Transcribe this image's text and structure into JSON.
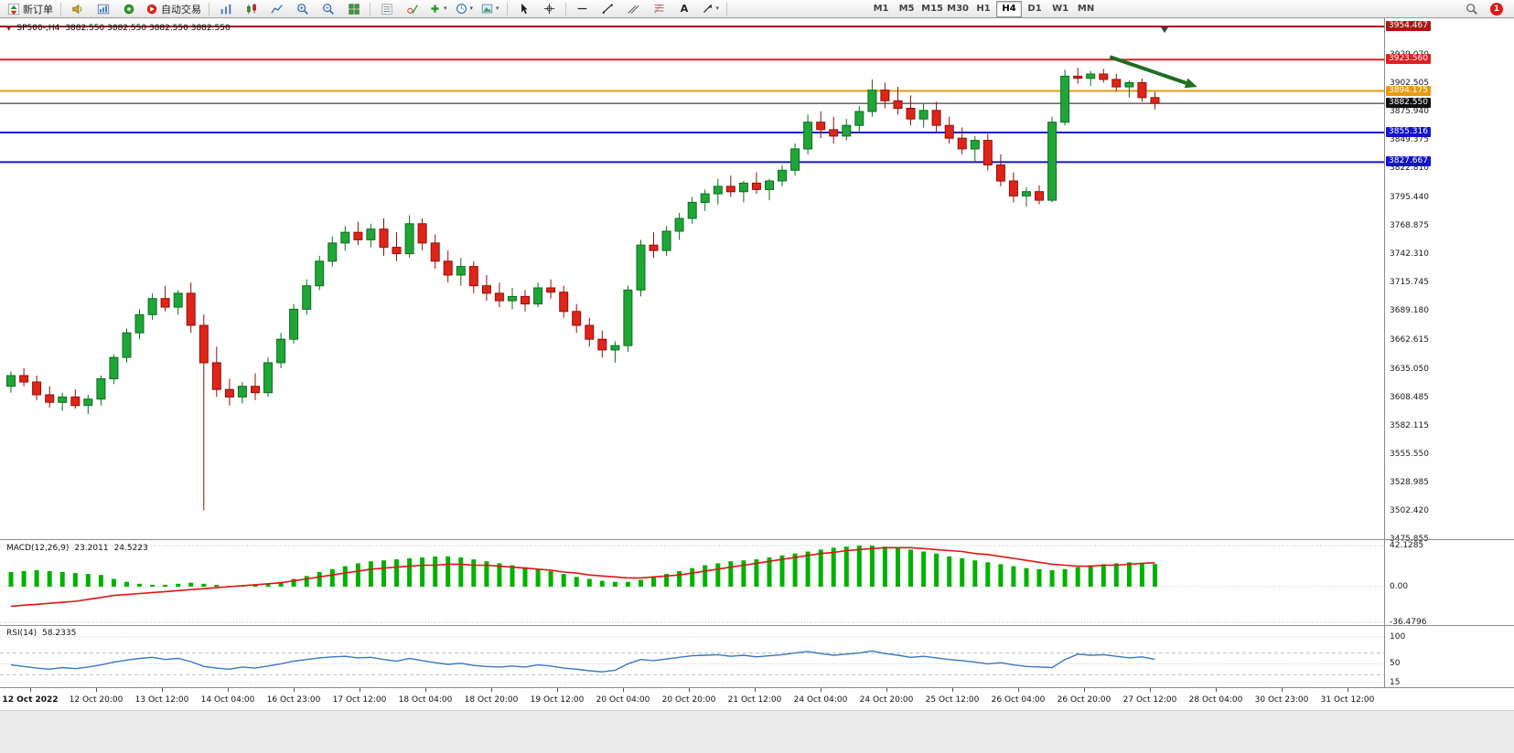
{
  "toolbar": {
    "new_order_label": "新订单",
    "auto_trading_label": "自动交易",
    "text_tool_label": "A",
    "timeframes": [
      "M1",
      "M5",
      "M15",
      "M30",
      "H1",
      "H4",
      "D1",
      "W1",
      "MN"
    ],
    "active_timeframe": "H4",
    "notification_count": "1"
  },
  "chart": {
    "title": "SP500-,H4",
    "quotes": "3882.550 3882.550 3882.550 3882.550"
  },
  "price_scale": {
    "regular_labels": [
      "3929.070",
      "3902.505",
      "3875.940",
      "3849.375",
      "3822.810",
      "3795.440",
      "3768.875",
      "3742.310",
      "3715.745",
      "3689.180",
      "3662.615",
      "3635.050",
      "3608.485",
      "3582.115",
      "3555.550",
      "3528.985",
      "3502.420",
      "3475.855"
    ],
    "badges": [
      {
        "value": "3954.467",
        "color": "#b01515"
      },
      {
        "value": "3923.560",
        "color": "#e02020"
      },
      {
        "value": "3894.175",
        "color": "#e89b10"
      },
      {
        "value": "3882.550",
        "color": "#101010"
      },
      {
        "value": "3855.316",
        "color": "#1414cc"
      },
      {
        "value": "3827.667",
        "color": "#1414cc"
      }
    ]
  },
  "hlines": [
    {
      "price": 3954.467,
      "color": "#a01616",
      "width": 2
    },
    {
      "price": 3923.56,
      "color": "#e02020",
      "width": 2
    },
    {
      "price": 3894.175,
      "color": "#e89b10",
      "width": 2
    },
    {
      "price": 3882.55,
      "color": "#141414",
      "width": 1
    },
    {
      "price": 3855.316,
      "color": "#1414cc",
      "width": 2
    },
    {
      "price": 3827.667,
      "color": "#1414cc",
      "width": 2
    }
  ],
  "macd": {
    "name": "MACD(12,26,9)",
    "value_main": "23.2011",
    "value_signal": "24.5223",
    "scale_top": "42.1285",
    "scale_mid": "0.00",
    "scale_bottom": "-36.4796"
  },
  "rsi": {
    "name": "RSI(14)",
    "value": "58.2335",
    "scale_top": "100",
    "scale_mid": "50",
    "scale_bottom": "15"
  },
  "time_axis": {
    "labels": [
      "12 Oct 2022",
      "12 Oct 20:00",
      "13 Oct 12:00",
      "14 Oct 04:00",
      "16 Oct 23:00",
      "17 Oct 12:00",
      "18 Oct 04:00",
      "18 Oct 20:00",
      "19 Oct 12:00",
      "20 Oct 04:00",
      "20 Oct 20:00",
      "21 Oct 12:00",
      "24 Oct 04:00",
      "24 Oct 20:00",
      "25 Oct 12:00",
      "26 Oct 04:00",
      "26 Oct 20:00",
      "27 Oct 12:00",
      "28 Oct 04:00",
      "30 Oct 23:00",
      "31 Oct 12:00"
    ]
  },
  "chart_data": {
    "type": "candlestick",
    "symbol": "SP500-",
    "period": "H4",
    "title": "SP500-,H4 3882.550 3882.550 3882.550 3882.550",
    "price_axis_range": [
      3475.855,
      3954.467
    ],
    "macd_axis_range": [
      -36.4796,
      42.1285
    ],
    "rsi_axis_range": [
      15,
      100
    ],
    "up_color": "#1fa637",
    "down_color": "#e02418",
    "candles": [
      [
        3618,
        3632,
        3612,
        3628
      ],
      [
        3628,
        3635,
        3618,
        3622
      ],
      [
        3622,
        3628,
        3605,
        3610
      ],
      [
        3610,
        3618,
        3598,
        3603
      ],
      [
        3603,
        3612,
        3595,
        3608
      ],
      [
        3608,
        3615,
        3597,
        3600
      ],
      [
        3600,
        3610,
        3592,
        3606
      ],
      [
        3606,
        3628,
        3600,
        3625
      ],
      [
        3625,
        3648,
        3620,
        3645
      ],
      [
        3645,
        3672,
        3640,
        3668
      ],
      [
        3668,
        3690,
        3662,
        3685
      ],
      [
        3685,
        3705,
        3680,
        3700
      ],
      [
        3700,
        3712,
        3688,
        3692
      ],
      [
        3692,
        3708,
        3685,
        3705
      ],
      [
        3705,
        3715,
        3668,
        3675
      ],
      [
        3675,
        3685,
        3502,
        3640
      ],
      [
        3640,
        3655,
        3608,
        3615
      ],
      [
        3615,
        3625,
        3600,
        3608
      ],
      [
        3608,
        3622,
        3602,
        3618
      ],
      [
        3618,
        3630,
        3605,
        3612
      ],
      [
        3612,
        3645,
        3608,
        3640
      ],
      [
        3640,
        3668,
        3635,
        3662
      ],
      [
        3662,
        3695,
        3658,
        3690
      ],
      [
        3690,
        3718,
        3685,
        3712
      ],
      [
        3712,
        3740,
        3708,
        3735
      ],
      [
        3735,
        3758,
        3730,
        3752
      ],
      [
        3752,
        3768,
        3745,
        3762
      ],
      [
        3762,
        3772,
        3750,
        3755
      ],
      [
        3755,
        3770,
        3748,
        3765
      ],
      [
        3765,
        3775,
        3740,
        3748
      ],
      [
        3748,
        3762,
        3735,
        3742
      ],
      [
        3742,
        3778,
        3738,
        3770
      ],
      [
        3770,
        3775,
        3745,
        3752
      ],
      [
        3752,
        3760,
        3728,
        3735
      ],
      [
        3735,
        3745,
        3715,
        3722
      ],
      [
        3722,
        3738,
        3712,
        3730
      ],
      [
        3730,
        3735,
        3705,
        3712
      ],
      [
        3712,
        3722,
        3698,
        3705
      ],
      [
        3705,
        3715,
        3692,
        3698
      ],
      [
        3698,
        3710,
        3690,
        3702
      ],
      [
        3702,
        3708,
        3688,
        3695
      ],
      [
        3695,
        3715,
        3692,
        3710
      ],
      [
        3710,
        3718,
        3700,
        3706
      ],
      [
        3706,
        3712,
        3682,
        3688
      ],
      [
        3688,
        3695,
        3668,
        3675
      ],
      [
        3675,
        3682,
        3655,
        3662
      ],
      [
        3662,
        3670,
        3645,
        3652
      ],
      [
        3652,
        3660,
        3640,
        3656
      ],
      [
        3656,
        3712,
        3650,
        3708
      ],
      [
        3708,
        3755,
        3702,
        3750
      ],
      [
        3750,
        3762,
        3738,
        3745
      ],
      [
        3745,
        3768,
        3740,
        3763
      ],
      [
        3763,
        3780,
        3755,
        3775
      ],
      [
        3775,
        3795,
        3770,
        3790
      ],
      [
        3790,
        3802,
        3782,
        3798
      ],
      [
        3798,
        3812,
        3788,
        3805
      ],
      [
        3805,
        3815,
        3795,
        3800
      ],
      [
        3800,
        3810,
        3790,
        3808
      ],
      [
        3808,
        3818,
        3798,
        3802
      ],
      [
        3802,
        3812,
        3792,
        3810
      ],
      [
        3810,
        3825,
        3805,
        3820
      ],
      [
        3820,
        3845,
        3815,
        3840
      ],
      [
        3840,
        3872,
        3835,
        3865
      ],
      [
        3865,
        3875,
        3850,
        3858
      ],
      [
        3858,
        3870,
        3845,
        3852
      ],
      [
        3852,
        3868,
        3848,
        3862
      ],
      [
        3862,
        3880,
        3855,
        3875
      ],
      [
        3875,
        3905,
        3870,
        3895
      ],
      [
        3895,
        3902,
        3878,
        3885
      ],
      [
        3885,
        3898,
        3872,
        3878
      ],
      [
        3878,
        3890,
        3862,
        3868
      ],
      [
        3868,
        3882,
        3860,
        3876
      ],
      [
        3876,
        3884,
        3856,
        3862
      ],
      [
        3862,
        3870,
        3845,
        3850
      ],
      [
        3850,
        3860,
        3835,
        3840
      ],
      [
        3840,
        3852,
        3828,
        3848
      ],
      [
        3848,
        3854,
        3820,
        3825
      ],
      [
        3825,
        3835,
        3805,
        3810
      ],
      [
        3810,
        3818,
        3790,
        3796
      ],
      [
        3796,
        3804,
        3786,
        3800
      ],
      [
        3800,
        3806,
        3788,
        3792
      ],
      [
        3792,
        3870,
        3790,
        3865
      ],
      [
        3865,
        3914,
        3862,
        3908
      ],
      [
        3908,
        3916,
        3901,
        3906
      ],
      [
        3906,
        3913,
        3899,
        3910
      ],
      [
        3910,
        3915,
        3902,
        3905
      ],
      [
        3905,
        3910,
        3894,
        3898
      ],
      [
        3898,
        3904,
        3888,
        3902
      ],
      [
        3902,
        3906,
        3884,
        3888
      ],
      [
        3888,
        3893,
        3877,
        3882.55
      ]
    ],
    "macd_histogram": [
      15,
      16,
      17,
      16,
      15,
      14,
      13,
      12,
      8,
      5,
      3,
      2,
      2,
      3,
      4,
      3,
      2,
      1,
      1,
      2,
      3,
      5,
      8,
      11,
      15,
      18,
      21,
      24,
      26,
      27,
      28,
      29,
      30,
      31,
      31,
      30,
      28,
      26,
      24,
      22,
      20,
      18,
      16,
      13,
      10,
      8,
      6,
      5,
      5,
      7,
      10,
      13,
      16,
      19,
      22,
      24,
      26,
      27,
      28,
      30,
      32,
      34,
      36,
      38,
      40,
      41,
      42,
      42,
      41,
      40,
      38,
      36,
      34,
      31,
      29,
      27,
      25,
      23,
      21,
      19,
      18,
      17,
      18,
      20,
      22,
      23,
      24,
      25,
      24,
      23.2011
    ],
    "macd_signal": [
      -20,
      -19,
      -18,
      -17,
      -16,
      -15,
      -13,
      -11,
      -9,
      -8,
      -7,
      -6,
      -5,
      -4,
      -3,
      -2,
      -1,
      0,
      1,
      2,
      3,
      4,
      6,
      8,
      10,
      12,
      14,
      16,
      18,
      19,
      20,
      21,
      22,
      22,
      23,
      23,
      22,
      22,
      21,
      20,
      19,
      18,
      17,
      15,
      14,
      12,
      11,
      10,
      9,
      9,
      10,
      11,
      12,
      14,
      16,
      18,
      20,
      22,
      24,
      26,
      28,
      30,
      32,
      34,
      35,
      37,
      38,
      39,
      40,
      40,
      40,
      39,
      38,
      37,
      36,
      34,
      33,
      31,
      29,
      27,
      25,
      23,
      22,
      21,
      21,
      22,
      22,
      23,
      24,
      24.5223
    ],
    "rsi": [
      48,
      45,
      42,
      40,
      43,
      41,
      44,
      48,
      53,
      57,
      60,
      62,
      58,
      60,
      54,
      45,
      42,
      40,
      44,
      42,
      46,
      50,
      55,
      58,
      61,
      63,
      64,
      61,
      62,
      58,
      55,
      60,
      56,
      52,
      49,
      51,
      47,
      45,
      44,
      46,
      44,
      48,
      46,
      42,
      40,
      37,
      35,
      38,
      50,
      58,
      56,
      59,
      62,
      65,
      66,
      67,
      64,
      66,
      63,
      65,
      67,
      70,
      73,
      69,
      66,
      68,
      70,
      74,
      69,
      66,
      62,
      64,
      61,
      58,
      56,
      53,
      50,
      52,
      48,
      45,
      44,
      43,
      58,
      68,
      66,
      67,
      64,
      61,
      63,
      58.2335
    ],
    "annotation_arrow": {
      "from_index": 85.5,
      "from_price": 3926,
      "to_index": 92.3,
      "to_price": 3898,
      "color": "#1e6e1e"
    }
  }
}
